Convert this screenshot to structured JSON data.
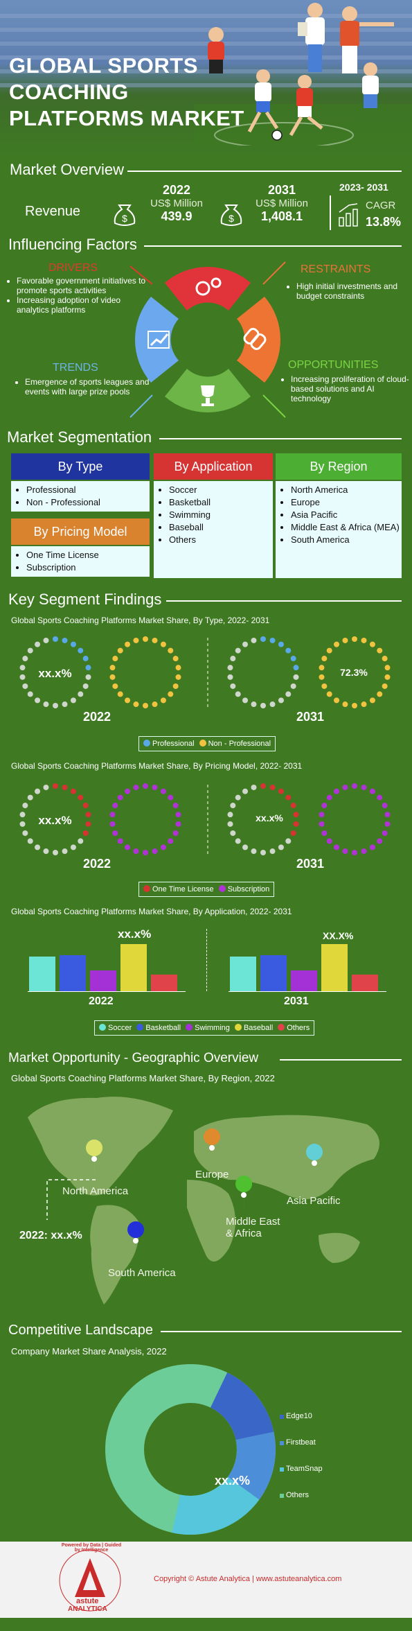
{
  "hero": {
    "title_line1": "GLOBAL SPORTS",
    "title_line2": "COACHING",
    "title_line3": "PLATFORMS MARKET"
  },
  "overview": {
    "heading": "Market Overview",
    "revenue_label": "Revenue",
    "y1": {
      "year": "2022",
      "unit": "US$ Million",
      "value": "439.9"
    },
    "y2": {
      "year": "2031",
      "unit": "US$ Million",
      "value": "1,408.1"
    },
    "cagr": {
      "period": "2023- 2031",
      "label": "CAGR",
      "value": "13.8%"
    }
  },
  "factors": {
    "heading": "Influencing Factors",
    "drivers": {
      "title": "DRIVERS",
      "items": [
        "Favorable government initiatives to promote sports activities",
        "Increasing adoption of video analytics platforms"
      ]
    },
    "restraints": {
      "title": "RESTRAINTS",
      "items": [
        "High initial investments and budget constraints"
      ]
    },
    "trends": {
      "title": "TRENDS",
      "items": [
        "Emergence of sports leagues and events with large prize pools"
      ]
    },
    "opportunities": {
      "title": "OPPORTUNITIES",
      "items": [
        "Increasing proliferation of cloud-based solutions and AI technology"
      ]
    }
  },
  "segmentation": {
    "heading": "Market Segmentation",
    "by_type": {
      "title": "By Type",
      "items": [
        "Professional",
        "Non - Professional"
      ]
    },
    "by_application": {
      "title": "By Application",
      "items": [
        "Soccer",
        "Basketball",
        "Swimming",
        "Baseball",
        "Others"
      ]
    },
    "by_region": {
      "title": "By Region",
      "items": [
        "North America",
        "Europe",
        "Asia Pacific",
        "Middle East & Africa (MEA)",
        "South America"
      ]
    },
    "by_pricing": {
      "title": "By Pricing Model",
      "items": [
        "One Time License",
        "Subscription"
      ]
    }
  },
  "findings": {
    "heading": "Key Segment Findings",
    "type_chart": {
      "title": "Global Sports Coaching Platforms Market Share, By Type, 2022- 2031",
      "y1": "2022",
      "y2": "2031",
      "label_2022": "xx.x%",
      "label_2031": "72.3%",
      "legend": [
        "Professional",
        "Non - Professional"
      ]
    },
    "pricing_chart": {
      "title": "Global Sports Coaching Platforms Market Share, By Pricing Model, 2022- 2031",
      "y1": "2022",
      "y2": "2031",
      "label_2022": "xx.x%",
      "label_2031": "xx.x%",
      "legend": [
        "One Time License",
        "Subscription"
      ]
    },
    "app_chart": {
      "title": "Global Sports Coaching Platforms Market Share, By Application, 2022- 2031",
      "y1": "2022",
      "y2": "2031",
      "label_2022": "xx.x%",
      "label_2031": "XX.X%",
      "legend": [
        "Soccer",
        "Basketball",
        "Swimming",
        "Baseball",
        "Others"
      ]
    }
  },
  "geo": {
    "heading": "Market Opportunity - Geographic Overview",
    "subtitle": "Global Sports Coaching Platforms Market Share, By Region, 2022",
    "regions": [
      "North America",
      "Europe",
      "Asia Pacific",
      "Middle East & Africa",
      "South America"
    ],
    "callout": "2022: xx.x%"
  },
  "competitive": {
    "heading": "Competitive Landscape",
    "subtitle": "Company Market Share Analysis, 2022",
    "center_label": "xx.x%",
    "legend": [
      "Edge10",
      "Firstbeat",
      "TeamSnap",
      "Others"
    ]
  },
  "footer": {
    "tagline": "Powered by Data | Guided by Intelligence",
    "brand1": "astute",
    "brand2": "ANALYTICA",
    "copyright": "Copyright © Astute Analytica  |  www.astuteanalytica.com"
  },
  "colors": {
    "bg": "#3f7a23",
    "navy": "#2034a0",
    "red": "#d63333",
    "green": "#4cae33",
    "orange": "#d9832f",
    "soccer": "#6ce4d6",
    "basketball": "#3a5be0",
    "swimming": "#a331d6",
    "baseball": "#e0d83a",
    "others": "#e0434a",
    "professional": "#5aa8e8",
    "nonpro": "#f2c340",
    "onetime": "#d63333",
    "subscription": "#b033d6"
  },
  "icons": [
    "money-bag-icon",
    "bar-growth-icon",
    "gears-icon",
    "chain-link-icon",
    "chart-up-icon",
    "trophy-icon",
    "map-pin-icon"
  ]
}
